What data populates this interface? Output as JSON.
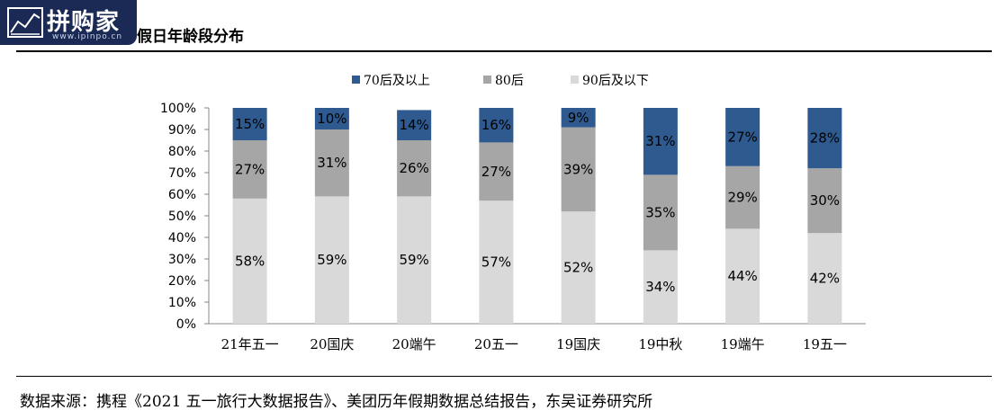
{
  "logo": {
    "text": "拼购家",
    "url": "www.ipinpo.cn"
  },
  "title": "假日年龄段分布",
  "source": "数据来源：携程《2021 五一旅行大数据报告》、美团历年假期数据总结报告，东吴证券研究所",
  "colors": {
    "s70": "#2f5a8f",
    "s80": "#a6a6a6",
    "s90": "#d9d9d9"
  },
  "chart_data": {
    "type": "bar",
    "stacked": true,
    "categories": [
      "21年五一",
      "20国庆",
      "20端午",
      "20五一",
      "19国庆",
      "19中秋",
      "19端午",
      "19五一"
    ],
    "series": [
      {
        "name": "90后及以下",
        "values": [
          58,
          59,
          59,
          57,
          52,
          34,
          44,
          42
        ]
      },
      {
        "name": "80后",
        "values": [
          27,
          31,
          26,
          27,
          39,
          35,
          29,
          30
        ]
      },
      {
        "name": "70后及以上",
        "values": [
          15,
          10,
          14,
          16,
          9,
          31,
          27,
          28
        ]
      }
    ],
    "legend_order": [
      "70后及以上",
      "80后",
      "90后及以下"
    ],
    "legend_position": "top",
    "yticks": [
      "0%",
      "10%",
      "20%",
      "30%",
      "40%",
      "50%",
      "60%",
      "70%",
      "80%",
      "90%",
      "100%"
    ],
    "ylim": [
      0,
      100
    ]
  }
}
